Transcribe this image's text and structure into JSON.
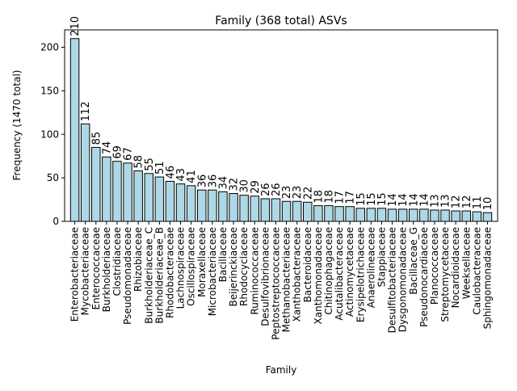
{
  "chart_data": {
    "type": "bar",
    "title": "Family (368 total) ASVs",
    "xlabel": "Family",
    "ylabel": "Frequency (1470 total)",
    "ylim": [
      0,
      220
    ],
    "yticks": [
      0,
      50,
      100,
      150,
      200
    ],
    "grid": false,
    "legend": "none",
    "bar_color": "#add8e6",
    "edge_color": "#000000",
    "categories": [
      "Enterobacteriaceae",
      "Mycobacteriaceae",
      "Enterococcaceae",
      "Burkholderiaceae",
      "Clostridiaceae",
      "Pseudomonadaceae",
      "Rhizobiaceae",
      "Burkholderiaceae_C",
      "Burkholderiaceae_B",
      "Rhodobacteraceae",
      "Lachnospiraceae",
      "Oscillospiraceae",
      "Moraxellaceae",
      "Microbacteriaceae",
      "Bacillaceae",
      "Beijerinckiaceae",
      "Rhodocyclaceae",
      "Ruminococcaceae",
      "Desulfovibrionaceae",
      "Peptostreptococcaceae",
      "Methanobacteriaceae",
      "Xanthobacteraceae",
      "Bacteroidaceae",
      "Xanthomonadaceae",
      "Chitinophagaceae",
      "Acutalibacteraceae",
      "Actinomycetaceae",
      "Erysipelotrichaceae",
      "Anaerolineaceae",
      "Stappiaceae",
      "Desulfitobacteriaceae",
      "Dysgonomonadaceae",
      "Bacillaceae_G",
      "Pseudonocardiaceae",
      "Planococcaceae",
      "Streptomycetaceae",
      "Nocardioidaceae",
      "Weeksellaceae",
      "Caulobacteraceae",
      "Sphingomonadaceae"
    ],
    "values": [
      210,
      112,
      85,
      74,
      69,
      67,
      58,
      55,
      51,
      46,
      43,
      41,
      36,
      36,
      34,
      32,
      30,
      29,
      26,
      26,
      23,
      23,
      22,
      18,
      18,
      17,
      17,
      15,
      15,
      15,
      14,
      14,
      14,
      14,
      13,
      13,
      12,
      12,
      11,
      10
    ]
  }
}
